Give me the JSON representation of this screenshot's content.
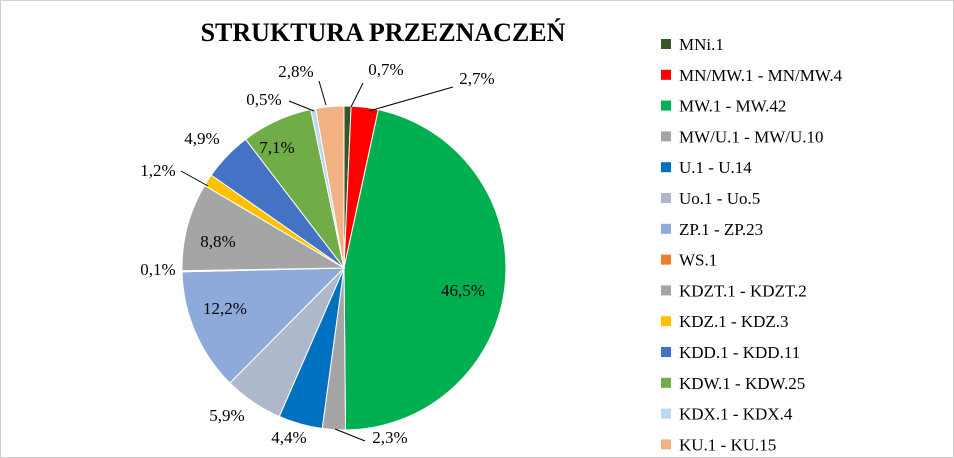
{
  "chart_data": {
    "type": "pie",
    "title": "STRUKTURA PRZEZNACZEŃ",
    "legend_position": "right",
    "slices": [
      {
        "name": "MNi.1",
        "value": 0.7,
        "label": "0,7%",
        "color": "#375623"
      },
      {
        "name": "MN/MW.1 - MN/MW.4",
        "value": 2.7,
        "label": "2,7%",
        "color": "#ff0000"
      },
      {
        "name": "MW.1 - MW.42",
        "value": 46.5,
        "label": "46,5%",
        "color": "#00b050"
      },
      {
        "name": "MW/U.1 - MW/U.10",
        "value": 2.3,
        "label": "2,3%",
        "color": "#a5a5a5"
      },
      {
        "name": "U.1 - U.14",
        "value": 4.4,
        "label": "4,4%",
        "color": "#0070c0"
      },
      {
        "name": "Uo.1 - Uo.5",
        "value": 5.9,
        "label": "5,9%",
        "color": "#adb9ca"
      },
      {
        "name": "ZP.1 - ZP.23",
        "value": 12.2,
        "label": "12,2%",
        "color": "#8eaadb"
      },
      {
        "name": "WS.1",
        "value": 0.1,
        "label": "0,1%",
        "color": "#ed7d31"
      },
      {
        "name": "KDZT.1 - KDZT.2",
        "value": 8.8,
        "label": "8,8%",
        "color": "#a5a5a5"
      },
      {
        "name": "KDZ.1 - KDZ.3",
        "value": 1.2,
        "label": "1,2%",
        "color": "#ffc000"
      },
      {
        "name": "KDD.1 - KDD.11",
        "value": 4.9,
        "label": "4,9%",
        "color": "#4472c4"
      },
      {
        "name": "KDW.1 - KDW.25",
        "value": 7.1,
        "label": "7,1%",
        "color": "#70ad47"
      },
      {
        "name": "KDX.1 - KDX.4",
        "value": 0.5,
        "label": "0,5%",
        "color": "#bdd7ee"
      },
      {
        "name": "KU.1 - KU.15",
        "value": 2.8,
        "label": "2,8%",
        "color": "#f4b183"
      }
    ]
  }
}
